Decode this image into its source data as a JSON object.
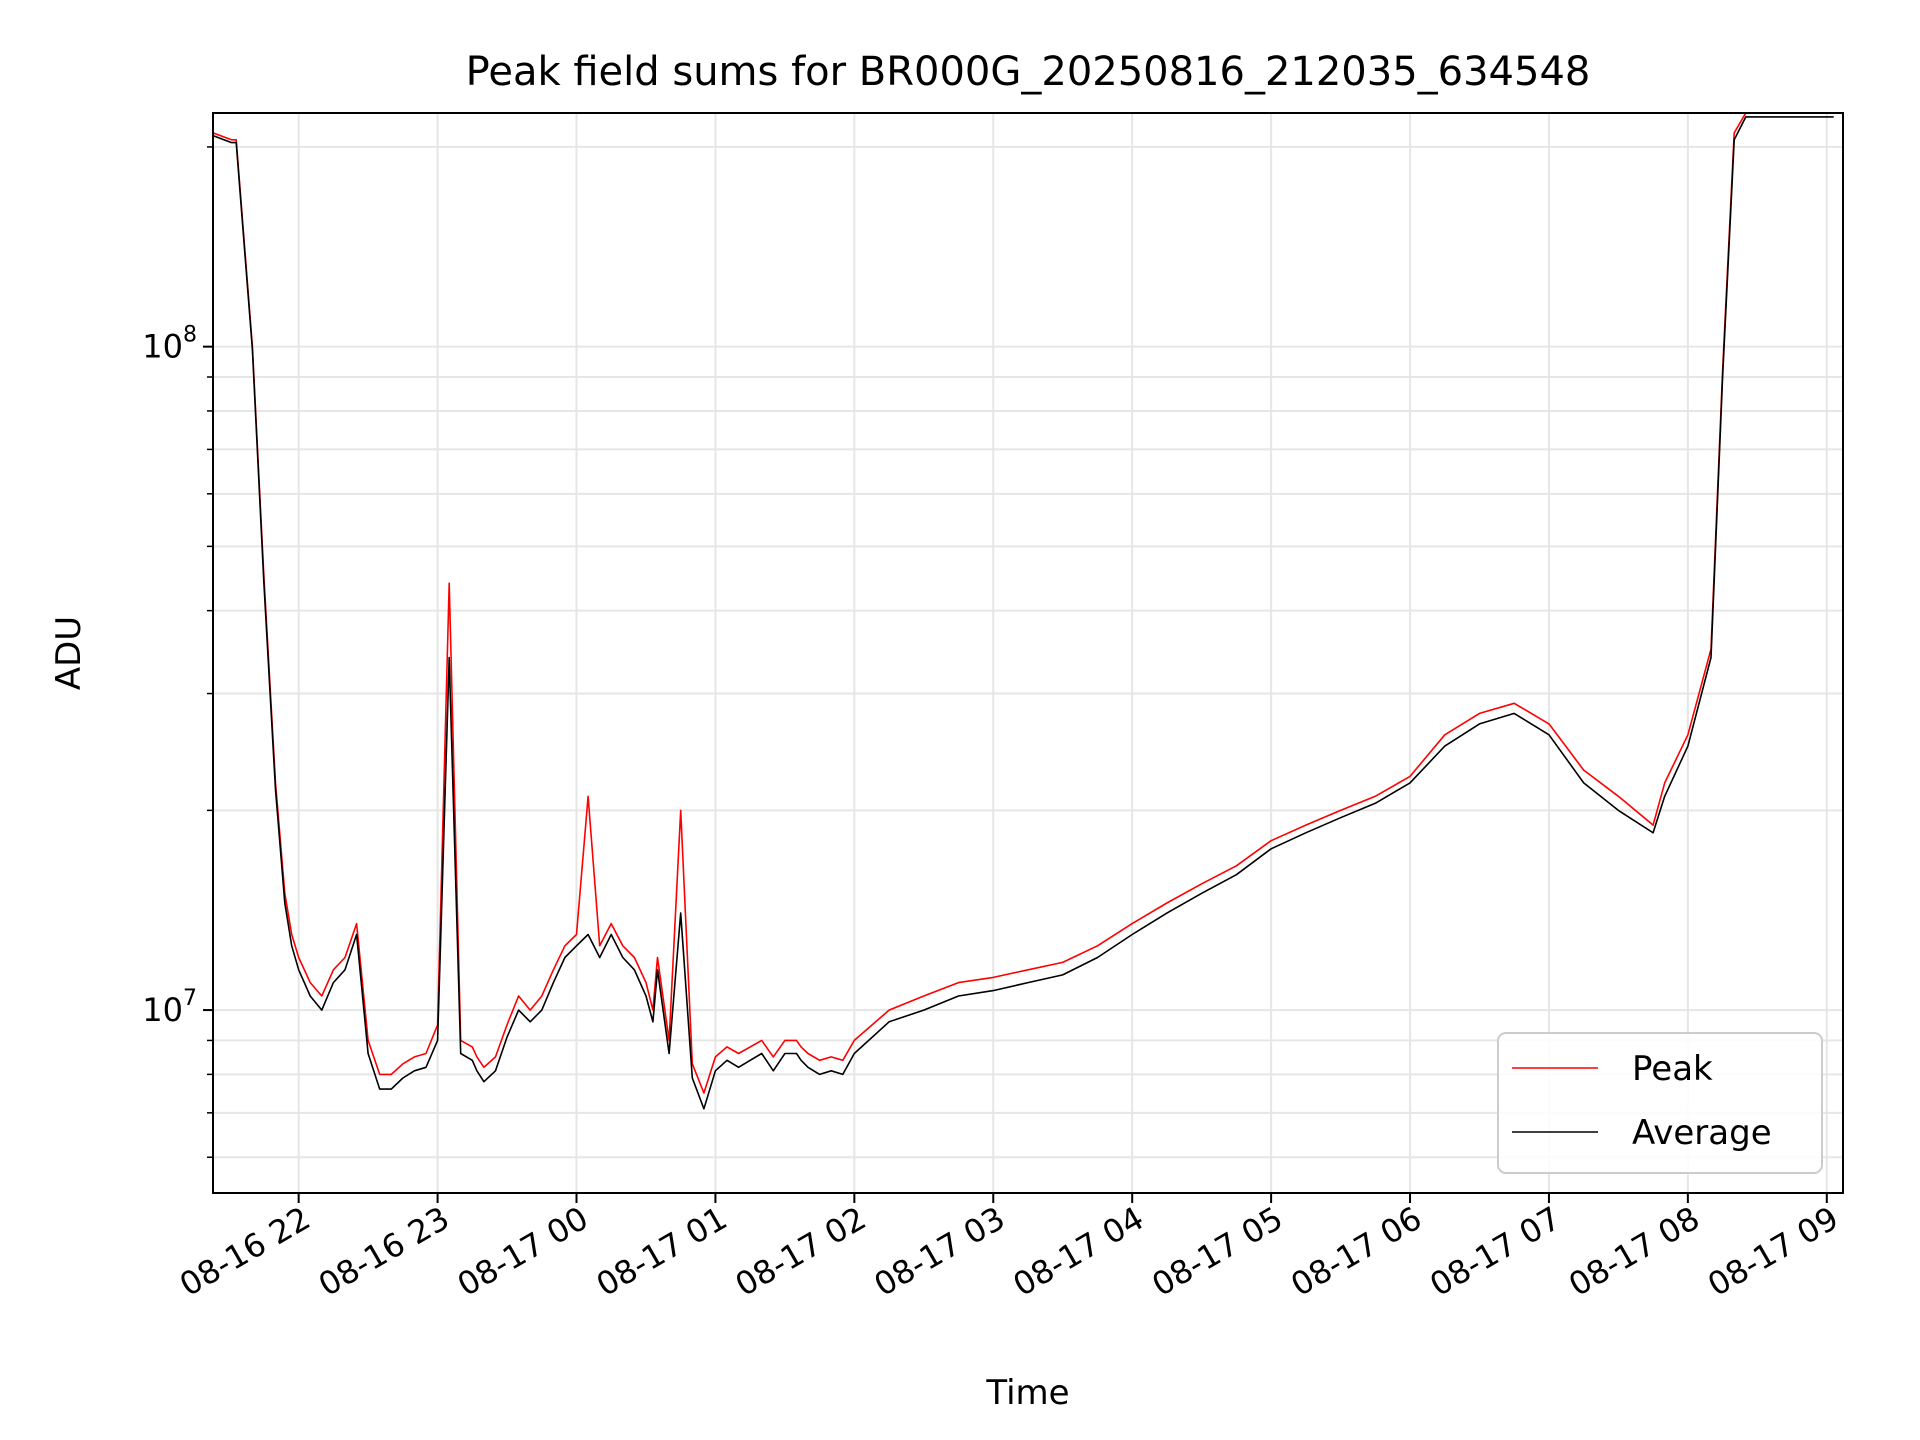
{
  "chart_data": {
    "type": "line",
    "title": "Peak field sums for BR000G_20250816_212035_634548",
    "xlabel": "Time",
    "ylabel": "ADU",
    "yscale": "log",
    "ylim": [
      5300000,
      225000000
    ],
    "xlim": [
      "2025-08-16 21:23",
      "2025-08-17 09:07"
    ],
    "grid": true,
    "legend": {
      "position": "lower-right"
    },
    "x_ticks": [
      {
        "t": "2025-08-16 22:00",
        "label": "08-16 22"
      },
      {
        "t": "2025-08-16 23:00",
        "label": "08-16 23"
      },
      {
        "t": "2025-08-17 00:00",
        "label": "08-17 00"
      },
      {
        "t": "2025-08-17 01:00",
        "label": "08-17 01"
      },
      {
        "t": "2025-08-17 02:00",
        "label": "08-17 02"
      },
      {
        "t": "2025-08-17 03:00",
        "label": "08-17 03"
      },
      {
        "t": "2025-08-17 04:00",
        "label": "08-17 04"
      },
      {
        "t": "2025-08-17 05:00",
        "label": "08-17 05"
      },
      {
        "t": "2025-08-17 06:00",
        "label": "08-17 06"
      },
      {
        "t": "2025-08-17 07:00",
        "label": "08-17 07"
      },
      {
        "t": "2025-08-17 08:00",
        "label": "08-17 08"
      },
      {
        "t": "2025-08-17 09:00",
        "label": "08-17 09"
      }
    ],
    "y_major_ticks": [
      {
        "value": 10000000,
        "base": "10",
        "exp": "7"
      },
      {
        "value": 100000000,
        "base": "10",
        "exp": "8"
      }
    ],
    "x": [
      "2025-08-16 21:23",
      "2025-08-16 21:31",
      "2025-08-16 21:33",
      "2025-08-16 21:40",
      "2025-08-16 21:45",
      "2025-08-16 21:50",
      "2025-08-16 21:54",
      "2025-08-16 21:57",
      "2025-08-16 22:00",
      "2025-08-16 22:05",
      "2025-08-16 22:10",
      "2025-08-16 22:15",
      "2025-08-16 22:20",
      "2025-08-16 22:25",
      "2025-08-16 22:30",
      "2025-08-16 22:35",
      "2025-08-16 22:40",
      "2025-08-16 22:45",
      "2025-08-16 22:50",
      "2025-08-16 22:55",
      "2025-08-16 23:00",
      "2025-08-16 23:05",
      "2025-08-16 23:10",
      "2025-08-16 23:15",
      "2025-08-16 23:17",
      "2025-08-16 23:20",
      "2025-08-16 23:25",
      "2025-08-16 23:30",
      "2025-08-16 23:35",
      "2025-08-16 23:40",
      "2025-08-16 23:45",
      "2025-08-16 23:50",
      "2025-08-16 23:55",
      "2025-08-17 00:00",
      "2025-08-17 00:05",
      "2025-08-17 00:10",
      "2025-08-17 00:15",
      "2025-08-17 00:20",
      "2025-08-17 00:25",
      "2025-08-17 00:30",
      "2025-08-17 00:33",
      "2025-08-17 00:35",
      "2025-08-17 00:40",
      "2025-08-17 00:45",
      "2025-08-17 00:50",
      "2025-08-17 00:55",
      "2025-08-17 01:00",
      "2025-08-17 01:05",
      "2025-08-17 01:10",
      "2025-08-17 01:15",
      "2025-08-17 01:20",
      "2025-08-17 01:25",
      "2025-08-17 01:30",
      "2025-08-17 01:35",
      "2025-08-17 01:37",
      "2025-08-17 01:40",
      "2025-08-17 01:45",
      "2025-08-17 01:50",
      "2025-08-17 01:55",
      "2025-08-17 02:00",
      "2025-08-17 02:15",
      "2025-08-17 02:30",
      "2025-08-17 02:45",
      "2025-08-17 03:00",
      "2025-08-17 03:15",
      "2025-08-17 03:30",
      "2025-08-17 03:45",
      "2025-08-17 04:00",
      "2025-08-17 04:15",
      "2025-08-17 04:30",
      "2025-08-17 04:45",
      "2025-08-17 05:00",
      "2025-08-17 05:15",
      "2025-08-17 05:30",
      "2025-08-17 05:45",
      "2025-08-17 06:00",
      "2025-08-17 06:15",
      "2025-08-17 06:30",
      "2025-08-17 06:45",
      "2025-08-17 07:00",
      "2025-08-17 07:15",
      "2025-08-17 07:30",
      "2025-08-17 07:45",
      "2025-08-17 07:50",
      "2025-08-17 08:00",
      "2025-08-17 08:10",
      "2025-08-17 08:15",
      "2025-08-17 08:20",
      "2025-08-17 08:25",
      "2025-08-17 08:30",
      "2025-08-17 08:35",
      "2025-08-17 08:40",
      "2025-08-17 08:45",
      "2025-08-17 08:50",
      "2025-08-17 08:55",
      "2025-08-17 09:00",
      "2025-08-17 09:03"
    ],
    "series": [
      {
        "name": "Peak",
        "color": "#ff0000",
        "values": [
          210000000,
          205000000,
          205000000,
          100000000,
          45000000,
          22000000,
          15000000,
          13000000,
          12000000,
          11000000,
          10500000,
          11500000,
          12000000,
          13500000,
          9000000,
          8000000,
          8000000,
          8300000,
          8500000,
          8600000,
          9500000,
          44000000,
          9000000,
          8800000,
          8500000,
          8200000,
          8500000,
          9500000,
          10500000,
          10000000,
          10500000,
          11500000,
          12500000,
          13000000,
          21000000,
          12500000,
          13500000,
          12500000,
          12000000,
          11000000,
          10000000,
          12000000,
          9000000,
          20000000,
          8300000,
          7500000,
          8500000,
          8800000,
          8600000,
          8800000,
          9000000,
          8500000,
          9000000,
          9000000,
          8800000,
          8600000,
          8400000,
          8500000,
          8400000,
          9000000,
          10000000,
          10500000,
          11000000,
          11200000,
          11500000,
          11800000,
          12500000,
          13500000,
          14500000,
          15500000,
          16500000,
          18000000,
          19000000,
          20000000,
          21000000,
          22500000,
          26000000,
          28000000,
          29000000,
          27000000,
          23000000,
          21000000,
          19000000,
          22000000,
          26000000,
          35000000,
          92000000,
          210000000,
          225000000,
          225000000,
          225000000,
          225000000,
          225000000,
          225000000,
          225000000,
          225000000,
          225000000
        ]
      },
      {
        "name": "Average",
        "color": "#000000",
        "values": [
          208000000,
          203000000,
          203000000,
          99000000,
          44000000,
          21500000,
          14500000,
          12500000,
          11500000,
          10500000,
          10000000,
          11000000,
          11500000,
          13000000,
          8600000,
          7600000,
          7600000,
          7900000,
          8100000,
          8200000,
          9000000,
          34000000,
          8600000,
          8400000,
          8100000,
          7800000,
          8100000,
          9100000,
          10000000,
          9600000,
          10000000,
          11000000,
          12000000,
          12500000,
          13000000,
          12000000,
          13000000,
          12000000,
          11500000,
          10500000,
          9600000,
          11500000,
          8600000,
          14000000,
          7900000,
          7100000,
          8100000,
          8400000,
          8200000,
          8400000,
          8600000,
          8100000,
          8600000,
          8600000,
          8400000,
          8200000,
          8000000,
          8100000,
          8000000,
          8600000,
          9600000,
          10000000,
          10500000,
          10700000,
          11000000,
          11300000,
          12000000,
          13000000,
          14000000,
          15000000,
          16000000,
          17500000,
          18500000,
          19500000,
          20500000,
          22000000,
          25000000,
          27000000,
          28000000,
          26000000,
          22000000,
          20000000,
          18500000,
          21000000,
          25000000,
          34000000,
          90000000,
          205000000,
          222000000,
          222000000,
          222000000,
          222000000,
          222000000,
          222000000,
          222000000,
          222000000,
          222000000
        ]
      }
    ]
  }
}
